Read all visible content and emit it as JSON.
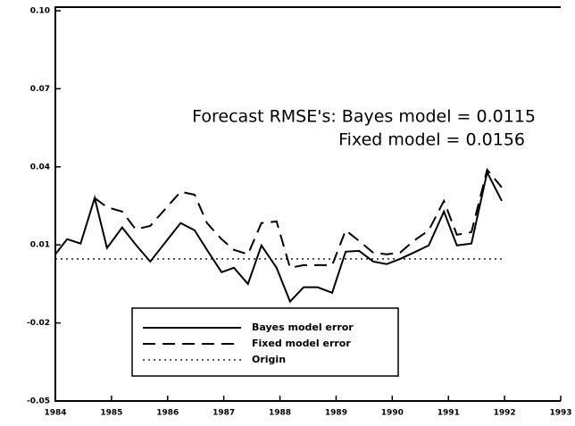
{
  "chart_data": {
    "type": "line",
    "annotations": [
      "Forecast RMSE's: Bayes model = 0.0115",
      "Fixed model = 0.0156"
    ],
    "x": [
      1984.0,
      1984.21,
      1984.45,
      1984.7,
      1984.92,
      1985.19,
      1985.43,
      1985.69,
      1986.23,
      1986.48,
      1986.7,
      1986.96,
      1987.18,
      1987.43,
      1987.67,
      1987.94,
      1988.18,
      1988.42,
      1988.67,
      1988.93,
      1989.17,
      1989.41,
      1989.66,
      1989.9,
      1990.14,
      1990.38,
      1990.65,
      1990.92,
      1991.15,
      1991.41,
      1991.69,
      1991.95
    ],
    "series": [
      {
        "name": "Bayes model error",
        "color": "#000000",
        "dash": "solid",
        "values": [
          0.0064,
          0.0122,
          0.0105,
          0.028,
          0.0088,
          0.0167,
          0.0101,
          0.0036,
          0.0184,
          0.0156,
          0.0081,
          -0.0005,
          0.0012,
          -0.005,
          0.0098,
          0.0012,
          -0.0118,
          -0.0063,
          -0.0063,
          -0.0084,
          0.0074,
          0.0077,
          0.0036,
          0.0026,
          0.0046,
          0.007,
          0.0098,
          0.0228,
          0.0098,
          0.0105,
          0.0379,
          0.0269
        ]
      },
      {
        "name": "Fixed model error",
        "color": "#000000",
        "dash": "dashed",
        "values": [
          null,
          null,
          null,
          0.028,
          0.0245,
          0.0228,
          0.016,
          0.0173,
          0.0304,
          0.0293,
          0.0184,
          0.0122,
          0.0081,
          0.0064,
          0.0184,
          0.019,
          0.0012,
          0.0022,
          0.0022,
          0.0022,
          0.0156,
          0.0115,
          0.007,
          0.0064,
          0.007,
          0.0115,
          0.0156,
          0.0269,
          0.0139,
          0.0149,
          0.0389,
          0.0321
        ]
      },
      {
        "name": "Origin",
        "color": "#000000",
        "dash": "dotted",
        "values": [
          0.0046,
          0.0046,
          0.0046,
          0.0046,
          0.0046,
          0.0046,
          0.0046,
          0.0046,
          0.0046,
          0.0046,
          0.0046,
          0.0046,
          0.0046,
          0.0046,
          0.0046,
          0.0046,
          0.0046,
          0.0046,
          0.0046,
          0.0046,
          0.0046,
          0.0046,
          0.0046,
          0.0046,
          0.0046,
          0.0046,
          0.0046,
          0.0046,
          0.0046,
          0.0046,
          0.0046,
          0.0046
        ]
      }
    ],
    "xlim": [
      1984,
      1993
    ],
    "xticks": [
      1984,
      1985,
      1986,
      1987,
      1988,
      1989,
      1990,
      1991,
      1992,
      1993
    ],
    "ylim": [
      -0.05,
      0.1
    ],
    "yticks": [
      -0.05,
      -0.02,
      0.01,
      0.04,
      0.07,
      {
        "value": 0.1,
        "label": "0.10"
      }
    ],
    "legend": "lower left"
  }
}
